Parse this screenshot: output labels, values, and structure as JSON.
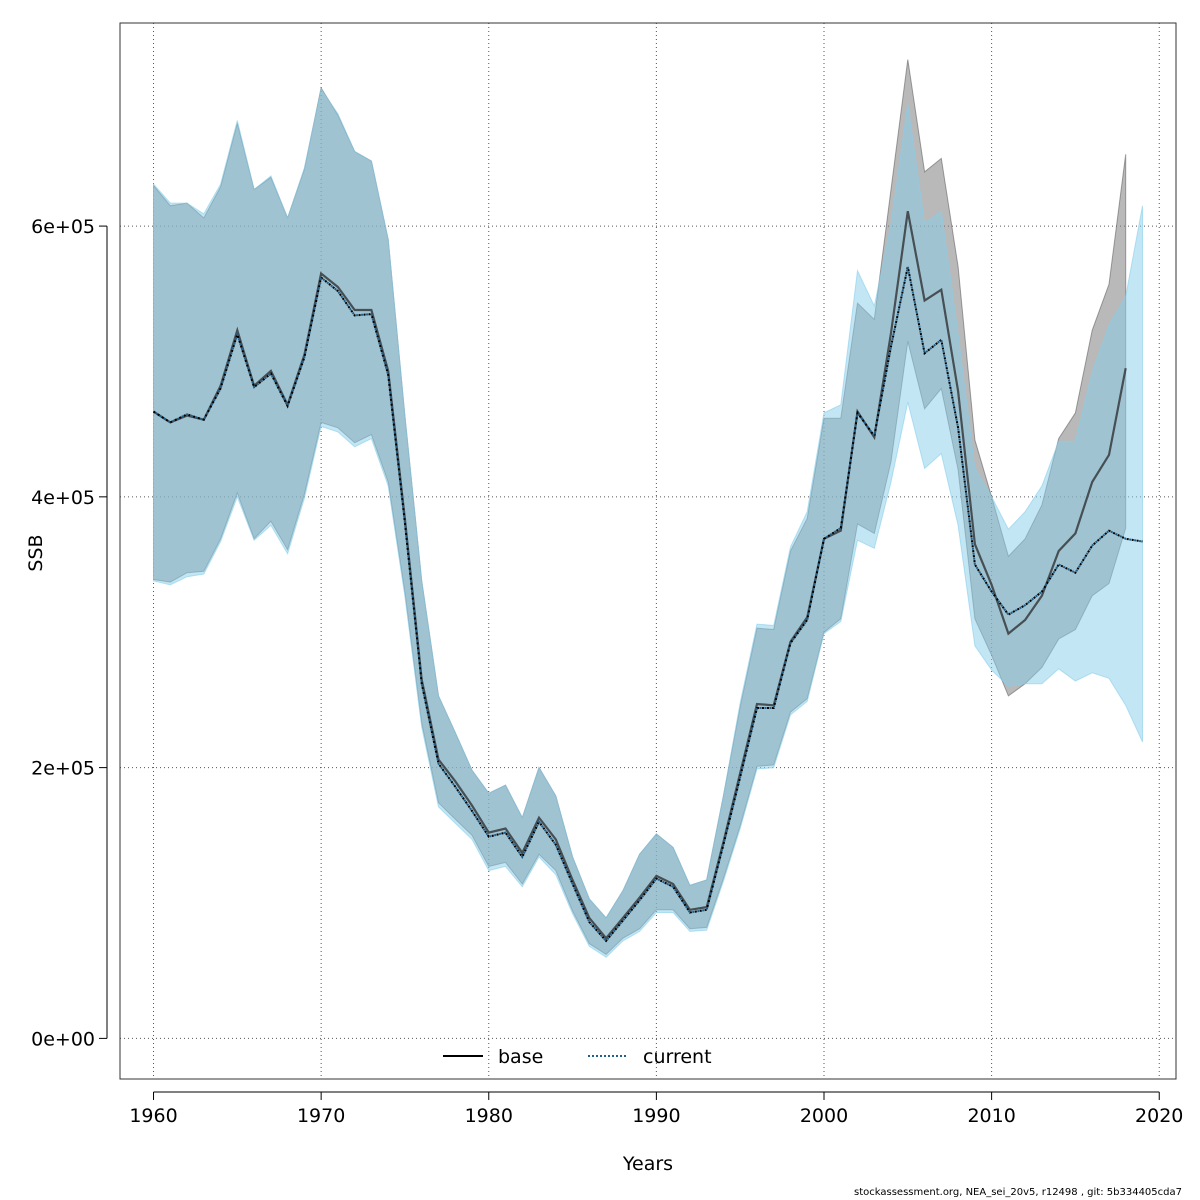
{
  "chart_data": {
    "type": "area",
    "xlabel": "Years",
    "ylabel": "SSB",
    "xlim": [
      1958,
      2021
    ],
    "ylim": [
      -30000,
      750000
    ],
    "xticks": [
      "1960",
      "1970",
      "1980",
      "1990",
      "2000",
      "2010",
      "2020"
    ],
    "yticks": [
      "0e+00",
      "2e+05",
      "4e+05",
      "6e+05"
    ],
    "grid": true,
    "legend_placement": "bottom-center",
    "colors": {
      "base_line": "#000000",
      "base_band": "rgba(128,128,128,0.55)",
      "current_line": "#1f5f8b",
      "current_band": "rgba(135,206,235,0.5)"
    },
    "x": [
      1960,
      1961,
      1962,
      1963,
      1964,
      1965,
      1966,
      1967,
      1968,
      1969,
      1970,
      1971,
      1972,
      1973,
      1974,
      1975,
      1976,
      1977,
      1978,
      1979,
      1980,
      1981,
      1982,
      1983,
      1984,
      1985,
      1986,
      1987,
      1988,
      1989,
      1990,
      1991,
      1992,
      1993,
      1994,
      1995,
      1996,
      1997,
      1998,
      1999,
      2000,
      2001,
      2002,
      2003,
      2004,
      2005,
      2006,
      2007,
      2008,
      2009,
      2010,
      2011,
      2012,
      2013,
      2014,
      2015,
      2016,
      2017,
      2018,
      2019
    ],
    "series": [
      {
        "name": "base",
        "style": "solid",
        "values": [
          463000,
          455000,
          460000,
          457000,
          482000,
          523000,
          482000,
          493000,
          468000,
          505000,
          565000,
          555000,
          538000,
          538000,
          493000,
          383000,
          265000,
          206000,
          190000,
          172000,
          152000,
          155000,
          137000,
          163000,
          147000,
          117000,
          89000,
          74000,
          89000,
          104000,
          120000,
          114000,
          95000,
          97000,
          145000,
          196000,
          247000,
          246000,
          293000,
          311000,
          369000,
          375000,
          463000,
          444000,
          521000,
          611000,
          545000,
          553000,
          478000,
          365000,
          335000,
          299000,
          309000,
          327000,
          360000,
          373000,
          411000,
          431000,
          495000,
          null
        ],
        "lower": [
          339000,
          337000,
          344000,
          345000,
          369000,
          403000,
          369000,
          382000,
          361000,
          402000,
          455000,
          451000,
          440000,
          446000,
          411000,
          329000,
          233000,
          174000,
          162000,
          150000,
          127000,
          130000,
          114000,
          136000,
          124000,
          94000,
          70000,
          62000,
          74000,
          81000,
          95000,
          95000,
          81000,
          82000,
          118000,
          157000,
          201000,
          202000,
          241000,
          251000,
          300000,
          310000,
          380000,
          373000,
          426000,
          515000,
          465000,
          480000,
          420000,
          310000,
          283000,
          253000,
          262000,
          274000,
          295000,
          302000,
          327000,
          336000,
          377000,
          null
        ],
        "upper": [
          630000,
          615000,
          617000,
          606000,
          629000,
          676000,
          627000,
          636000,
          606000,
          642000,
          702000,
          682000,
          655000,
          648000,
          590000,
          459000,
          338000,
          253000,
          226000,
          198000,
          181000,
          187000,
          163000,
          200000,
          179000,
          134000,
          103000,
          89000,
          109000,
          136000,
          151000,
          141000,
          113000,
          117000,
          179000,
          245000,
          303000,
          302000,
          360000,
          384000,
          458000,
          458000,
          543000,
          531000,
          627000,
          723000,
          640000,
          650000,
          570000,
          442000,
          400000,
          356000,
          369000,
          394000,
          443000,
          462000,
          523000,
          557000,
          653000,
          null
        ]
      },
      {
        "name": "current",
        "style": "dotted",
        "values": [
          463000,
          455000,
          461000,
          457000,
          480000,
          520000,
          481000,
          491000,
          467000,
          503000,
          562000,
          552000,
          534000,
          535000,
          490000,
          380000,
          262000,
          203000,
          186000,
          168000,
          149000,
          152000,
          134000,
          160000,
          143000,
          114000,
          86000,
          72000,
          87000,
          102000,
          118000,
          112000,
          93000,
          95000,
          143000,
          193000,
          244000,
          244000,
          292000,
          309000,
          369000,
          377000,
          462000,
          445000,
          511000,
          570000,
          506000,
          516000,
          451000,
          350000,
          330000,
          313000,
          320000,
          330000,
          350000,
          344000,
          364000,
          375000,
          369000,
          367000
        ],
        "lower": [
          338000,
          335000,
          341000,
          343000,
          367000,
          400000,
          368000,
          379000,
          358000,
          399000,
          452000,
          448000,
          437000,
          443000,
          408000,
          326000,
          230000,
          171000,
          159000,
          147000,
          124000,
          127000,
          112000,
          134000,
          121000,
          92000,
          68000,
          60000,
          72000,
          79000,
          93000,
          93000,
          79000,
          80000,
          116000,
          155000,
          199000,
          200000,
          239000,
          249000,
          299000,
          308000,
          368000,
          362000,
          411000,
          470000,
          421000,
          432000,
          379000,
          290000,
          272000,
          260000,
          262000,
          262000,
          273000,
          264000,
          270000,
          266000,
          246000,
          219000
        ],
        "upper": [
          631000,
          617000,
          617000,
          609000,
          631000,
          678000,
          627000,
          637000,
          606000,
          643000,
          701000,
          683000,
          655000,
          648000,
          590000,
          459000,
          338000,
          253000,
          226000,
          198000,
          181000,
          187000,
          163000,
          200000,
          179000,
          134000,
          103000,
          89000,
          109000,
          136000,
          151000,
          141000,
          113000,
          117000,
          179000,
          248000,
          306000,
          305000,
          363000,
          389000,
          462000,
          468000,
          567000,
          541000,
          601000,
          690000,
          602000,
          611000,
          520000,
          421000,
          400000,
          376000,
          389000,
          408000,
          441000,
          441000,
          492000,
          527000,
          548000,
          615000
        ]
      }
    ]
  },
  "legend": {
    "items": [
      "base",
      "current"
    ]
  },
  "footer": "stockassessment.org, NEA_sei_20v5, r12498 , git: 5b334405cda7"
}
